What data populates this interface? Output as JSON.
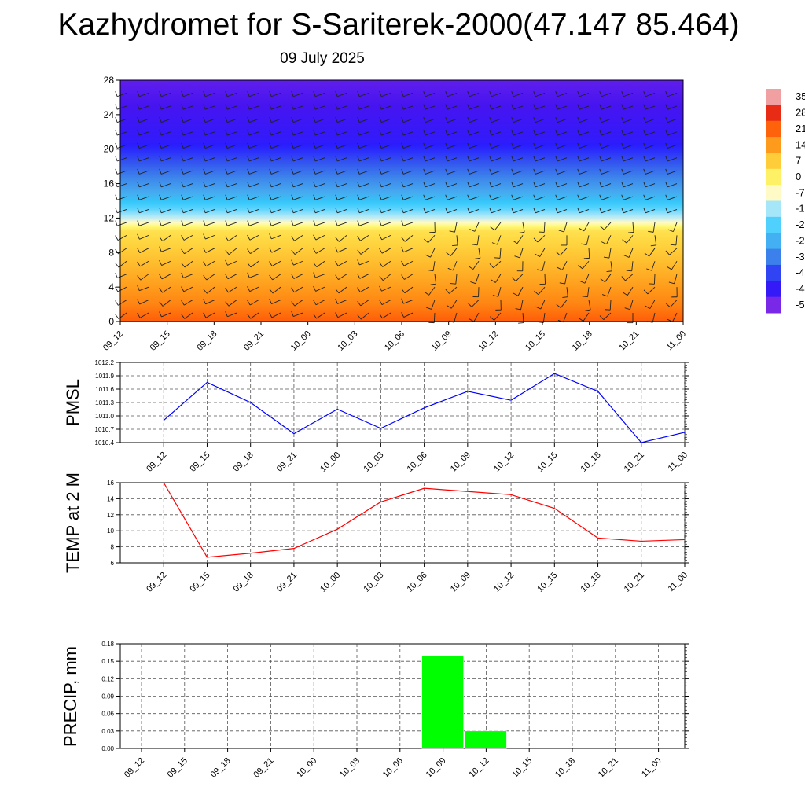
{
  "title": "Kazhydromet for S-Sariterek-2000(47.147 85.464)",
  "date": "09 July 2025",
  "time_labels": [
    "09_12",
    "09_15",
    "09_18",
    "09_21",
    "10_00",
    "10_03",
    "10_06",
    "10_09",
    "10_12",
    "10_15",
    "10_18",
    "10_21",
    "11_00"
  ],
  "chart_data": [
    {
      "type": "heatmap",
      "y_ticks": [
        "0",
        "4",
        "8",
        "12",
        "16",
        "20",
        "24",
        "28"
      ],
      "ylim": [
        0,
        28
      ],
      "colorbar_labels": [
        "35",
        "28",
        "21",
        "14",
        "7",
        "0",
        "-7",
        "-1",
        "-2",
        "-2",
        "-3",
        "-4",
        "-4",
        "-5"
      ],
      "levels_temperature_profile": [
        {
          "level": 0,
          "value": 21
        },
        {
          "level": 2,
          "value": 16
        },
        {
          "level": 6,
          "value": 10
        },
        {
          "level": 10.5,
          "value": 2
        },
        {
          "level": 11.5,
          "value": -9
        },
        {
          "level": 13,
          "value": -22
        },
        {
          "level": 15,
          "value": -32
        },
        {
          "level": 18,
          "value": -42
        },
        {
          "level": 21,
          "value": -52
        },
        {
          "level": 25,
          "value": -56
        },
        {
          "level": 28,
          "value": -58
        }
      ]
    },
    {
      "type": "line",
      "ylabel": "PMSL",
      "y_ticks": [
        "1010.4",
        "1010.7",
        "1011.0",
        "1011.3",
        "1011.6",
        "1011.9",
        "1012.2"
      ],
      "ylim": [
        1010.4,
        1012.2
      ],
      "series": [
        {
          "values": [
            1010.9,
            1011.75,
            1011.3,
            1010.6,
            1011.15,
            1010.72,
            1011.18,
            1011.55,
            1011.35,
            1011.95,
            1011.55,
            1010.4,
            1010.63
          ]
        }
      ]
    },
    {
      "type": "line",
      "ylabel": "TEMP at 2 M",
      "y_ticks": [
        "6",
        "8",
        "10",
        "12",
        "14",
        "16"
      ],
      "ylim": [
        6,
        16
      ],
      "series": [
        {
          "values": [
            16.0,
            6.7,
            7.2,
            7.8,
            10.2,
            13.6,
            15.3,
            14.9,
            14.5,
            12.8,
            9.1,
            8.7,
            8.9
          ]
        }
      ]
    },
    {
      "type": "bar",
      "ylabel": "PRECIP, mm",
      "y_ticks": [
        "0.00",
        "0.03",
        "0.06",
        "0.09",
        "0.12",
        "0.15",
        "0.18"
      ],
      "ylim": [
        0,
        0.18
      ],
      "values": [
        0,
        0,
        0,
        0,
        0,
        0,
        0,
        0.16,
        0.03,
        0,
        0,
        0,
        0
      ]
    }
  ],
  "colors": {
    "pmsl_line": "#0000ff",
    "temp_line": "#ff0000",
    "precip_bar": "#00ff00"
  }
}
